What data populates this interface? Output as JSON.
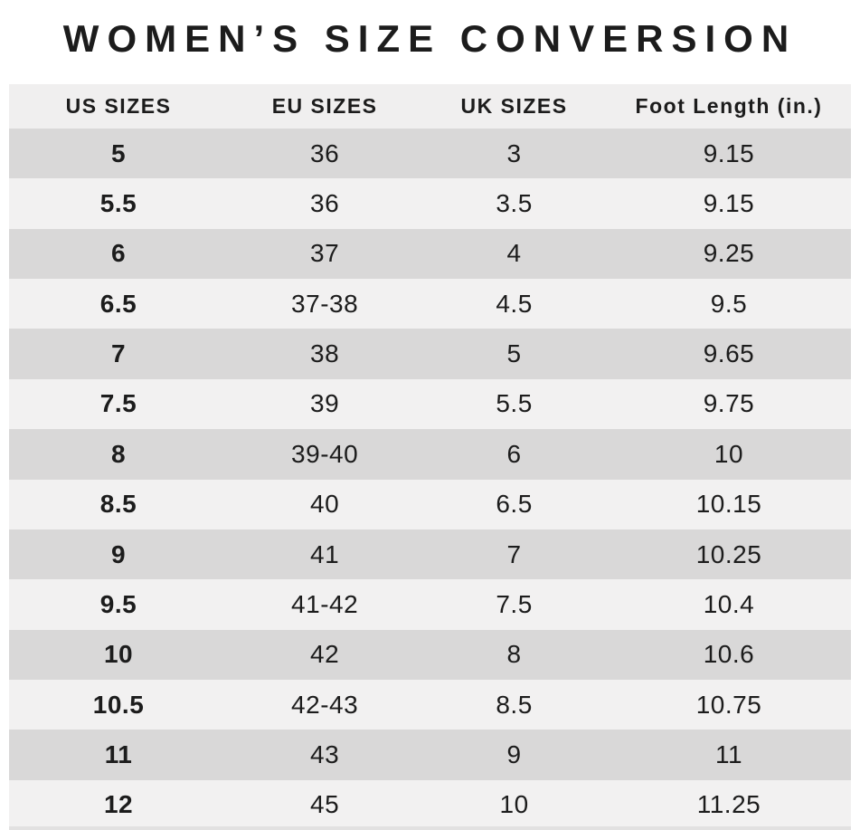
{
  "title": "WOMEN’S SIZE CONVERSION",
  "chart_data": {
    "type": "table",
    "title": "WOMEN’S SIZE CONVERSION",
    "columns": [
      "US SIZES",
      "EU SIZES",
      "UK SIZES",
      "Foot Length (in.)"
    ],
    "rows": [
      [
        "5",
        "36",
        "3",
        "9.15"
      ],
      [
        "5.5",
        "36",
        "3.5",
        "9.15"
      ],
      [
        "6",
        "37",
        "4",
        "9.25"
      ],
      [
        "6.5",
        "37-38",
        "4.5",
        "9.5"
      ],
      [
        "7",
        "38",
        "5",
        "9.65"
      ],
      [
        "7.5",
        "39",
        "5.5",
        "9.75"
      ],
      [
        "8",
        "39-40",
        "6",
        "10"
      ],
      [
        "8.5",
        "40",
        "6.5",
        "10.15"
      ],
      [
        "9",
        "41",
        "7",
        "10.25"
      ],
      [
        "9.5",
        "41-42",
        "7.5",
        "10.4"
      ],
      [
        "10",
        "42",
        "8",
        "10.6"
      ],
      [
        "10.5",
        "42-43",
        "8.5",
        "10.75"
      ],
      [
        "11",
        "43",
        "9",
        "11"
      ],
      [
        "12",
        "45",
        "10",
        "11.25"
      ]
    ]
  },
  "colors": {
    "page_bg": "#ffffff",
    "header_bg": "#f0efef",
    "row_dark": "#d9d8d8",
    "row_light": "#f2f1f1",
    "strip": "#e2e1e1",
    "text": "#1c1c1c"
  }
}
